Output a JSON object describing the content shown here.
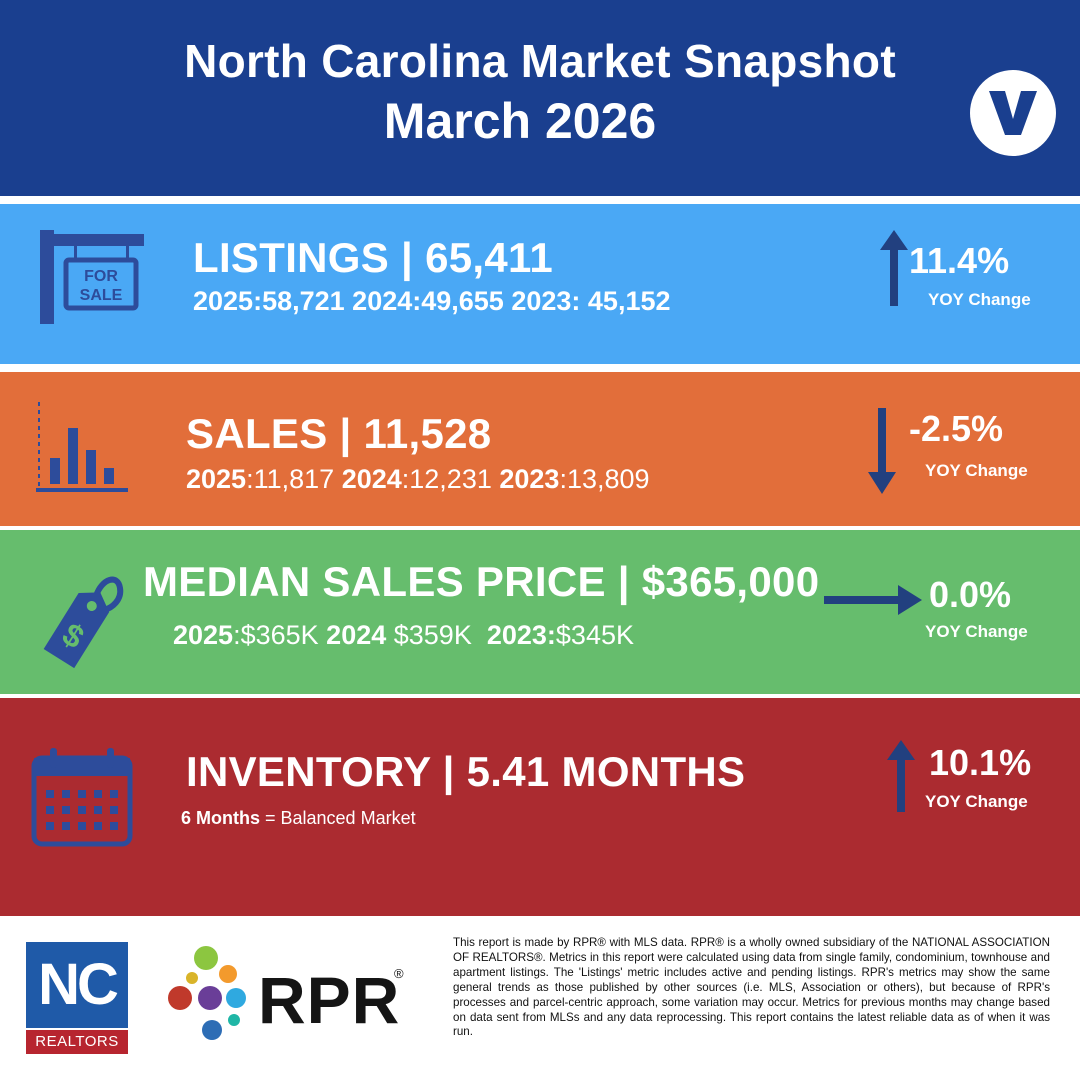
{
  "header": {
    "title": "North Carolina Market Snapshot",
    "subtitle": "March 2026",
    "logo_icon": "v-logo-icon"
  },
  "listings": {
    "title": "LISTINGS | 65,411",
    "history": [
      {
        "year": "2025:",
        "value": "58,721"
      },
      {
        "year": "2024:",
        "value": "49,655"
      },
      {
        "year": "2023:",
        "value": " 45,152"
      }
    ],
    "change": "11.4%",
    "change_label": "YOY Change",
    "direction": "up",
    "icon": "for-sale-sign-icon",
    "sign_text_1": "FOR",
    "sign_text_2": "SALE",
    "color": "#4aa8f5"
  },
  "sales": {
    "title": "SALES | 11,528",
    "history": [
      {
        "year": "2025",
        "value": ":11,817"
      },
      {
        "year": "2024",
        "value": ":12,231"
      },
      {
        "year": "2023",
        "value": ":13,809"
      }
    ],
    "change": "-2.5%",
    "change_label": "YOY Change",
    "direction": "down",
    "icon": "bar-chart-icon",
    "color": "#e26e3a"
  },
  "median_price": {
    "title": "MEDIAN SALES PRICE | $365,000",
    "history": [
      {
        "year": "2025",
        "value": ":$365K"
      },
      {
        "year": "2024",
        "value": " $359K"
      },
      {
        "year": "2023:",
        "value": "$345K"
      }
    ],
    "change": "0.0%",
    "change_label": "YOY Change",
    "direction": "flat",
    "icon": "price-tag-icon",
    "color": "#66bd6d"
  },
  "inventory": {
    "title": "INVENTORY | 5.41 MONTHS",
    "note_bold": "6 Months",
    "note_rest": " = Balanced Market",
    "change": "10.1%",
    "change_label": "YOY Change",
    "direction": "up",
    "icon": "calendar-icon",
    "color": "#ab2b30"
  },
  "footer": {
    "nc_logo_top": "NC",
    "nc_logo_bottom": "REALTORS",
    "rpr_logo": "RPR",
    "rpr_reg": "®",
    "disclaimer": "This report is made by RPR® with MLS data. RPR® is a wholly owned subsidiary of the NATIONAL ASSOCIATION OF REALTORS®. Metrics in this report were calculated using data from single family, condominium, townhouse and apartment listings. The 'Listings' metric includes active and pending listings. RPR's metrics may show the same general trends as those published by other sources (i.e. MLS, Association or others), but because of RPR's processes and parcel-centric approach, some variation may occur. Metrics for previous months may change based on data sent from MLSs and any data reprocessing. This report contains the latest reliable data as of when it was run."
  }
}
